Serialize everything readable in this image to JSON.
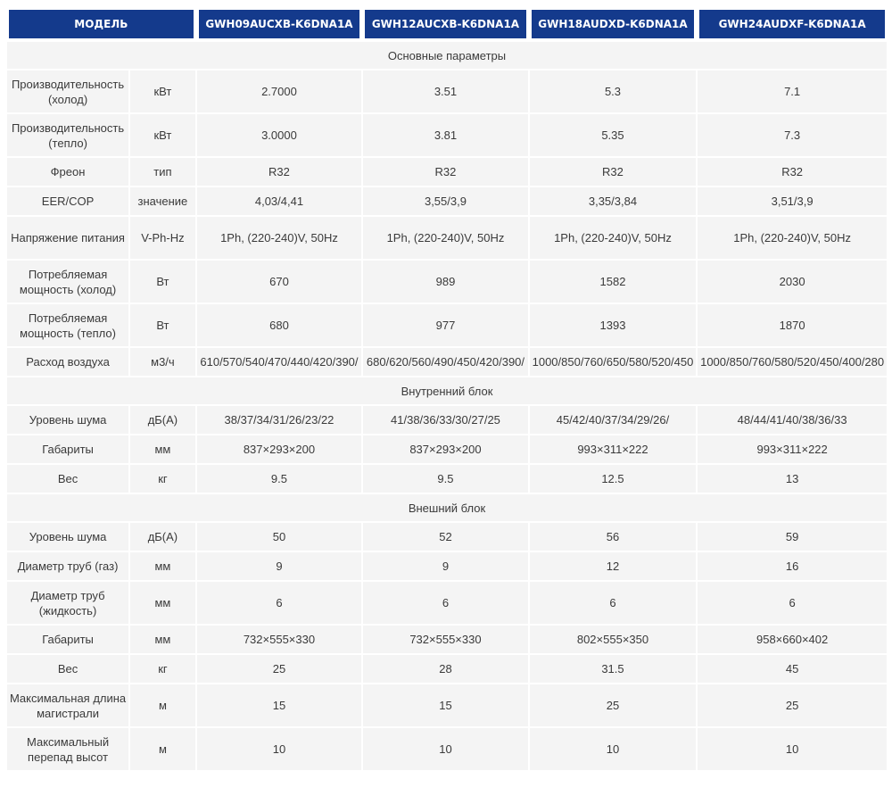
{
  "header": {
    "model": "МОДЕЛЬ",
    "models": [
      "GWH09AUCXB-K6DNA1A",
      "GWH12AUCXB-K6DNA1A",
      "GWH18AUDXD-K6DNA1A",
      "GWH24AUDXF-K6DNA1A"
    ]
  },
  "sections": {
    "main": "Основные параметры",
    "indoor": "Внутренний блок",
    "outdoor": "Внешний блок"
  },
  "rows": {
    "cool_capacity": {
      "label": "Производительность (холод)",
      "unit": "кВт",
      "values": [
        "2.7000",
        "3.51",
        "5.3",
        "7.1"
      ]
    },
    "heat_capacity": {
      "label": "Производительность (тепло)",
      "unit": "кВт",
      "values": [
        "3.0000",
        "3.81",
        "5.35",
        "7.3"
      ]
    },
    "refrigerant": {
      "label": "Фреон",
      "unit": "тип",
      "values": [
        "R32",
        "R32",
        "R32",
        "R32"
      ]
    },
    "eer_cop": {
      "label": "EER/COP",
      "unit": "значение",
      "values": [
        "4,03/4,41",
        "3,55/3,9",
        "3,35/3,84",
        "3,51/3,9"
      ]
    },
    "voltage": {
      "label": "Напряжение питания",
      "unit": "V-Ph-Hz",
      "values": [
        "1Ph, (220-240)V, 50Hz",
        "1Ph, (220-240)V, 50Hz",
        "1Ph, (220-240)V, 50Hz",
        "1Ph, (220-240)V, 50Hz"
      ]
    },
    "power_cool": {
      "label": "Потребляемая мощность (холод)",
      "unit": "Вт",
      "values": [
        "670",
        "989",
        "1582",
        "2030"
      ]
    },
    "power_heat": {
      "label": "Потребляемая мощность (тепло)",
      "unit": "Вт",
      "values": [
        "680",
        "977",
        "1393",
        "1870"
      ]
    },
    "airflow": {
      "label": "Расход воздуха",
      "unit": "м3/ч",
      "values": [
        "610/570/540/470/440/420/390/",
        "680/620/560/490/450/420/390/",
        "1000/850/760/650/580/520/450",
        "1000/850/760/580/520/450/400/280"
      ]
    },
    "in_noise": {
      "label": "Уровень шума",
      "unit": "дБ(А)",
      "values": [
        "38/37/34/31/26/23/22",
        "41/38/36/33/30/27/25",
        "45/42/40/37/34/29/26/",
        "48/44/41/40/38/36/33"
      ]
    },
    "in_dims": {
      "label": "Габариты",
      "unit": "мм",
      "values": [
        "837×293×200",
        "837×293×200",
        "993×311×222",
        "993×311×222"
      ]
    },
    "in_weight": {
      "label": "Вес",
      "unit": "кг",
      "values": [
        "9.5",
        "9.5",
        "12.5",
        "13"
      ]
    },
    "out_noise": {
      "label": "Уровень шума",
      "unit": "дБ(А)",
      "values": [
        "50",
        "52",
        "56",
        "59"
      ]
    },
    "pipe_gas": {
      "label": "Диаметр труб (газ)",
      "unit": "мм",
      "values": [
        "9",
        "9",
        "12",
        "16"
      ]
    },
    "pipe_liquid": {
      "label": "Диаметр труб (жидкость)",
      "unit": "мм",
      "values": [
        "6",
        "6",
        "6",
        "6"
      ]
    },
    "out_dims": {
      "label": "Габариты",
      "unit": "мм",
      "values": [
        "732×555×330",
        "732×555×330",
        "802×555×350",
        "958×660×402"
      ]
    },
    "out_weight": {
      "label": "Вес",
      "unit": "кг",
      "values": [
        "25",
        "28",
        "31.5",
        "45"
      ]
    },
    "max_length": {
      "label": "Максимальная длина магистрали",
      "unit": "м",
      "values": [
        "15",
        "15",
        "25",
        "25"
      ]
    },
    "max_height": {
      "label": "Максимальный перепад высот",
      "unit": "м",
      "values": [
        "10",
        "10",
        "10",
        "10"
      ]
    }
  },
  "colors": {
    "header_bg": "#143a8c",
    "header_text": "#ffffff",
    "cell_bg": "#f4f4f4"
  }
}
